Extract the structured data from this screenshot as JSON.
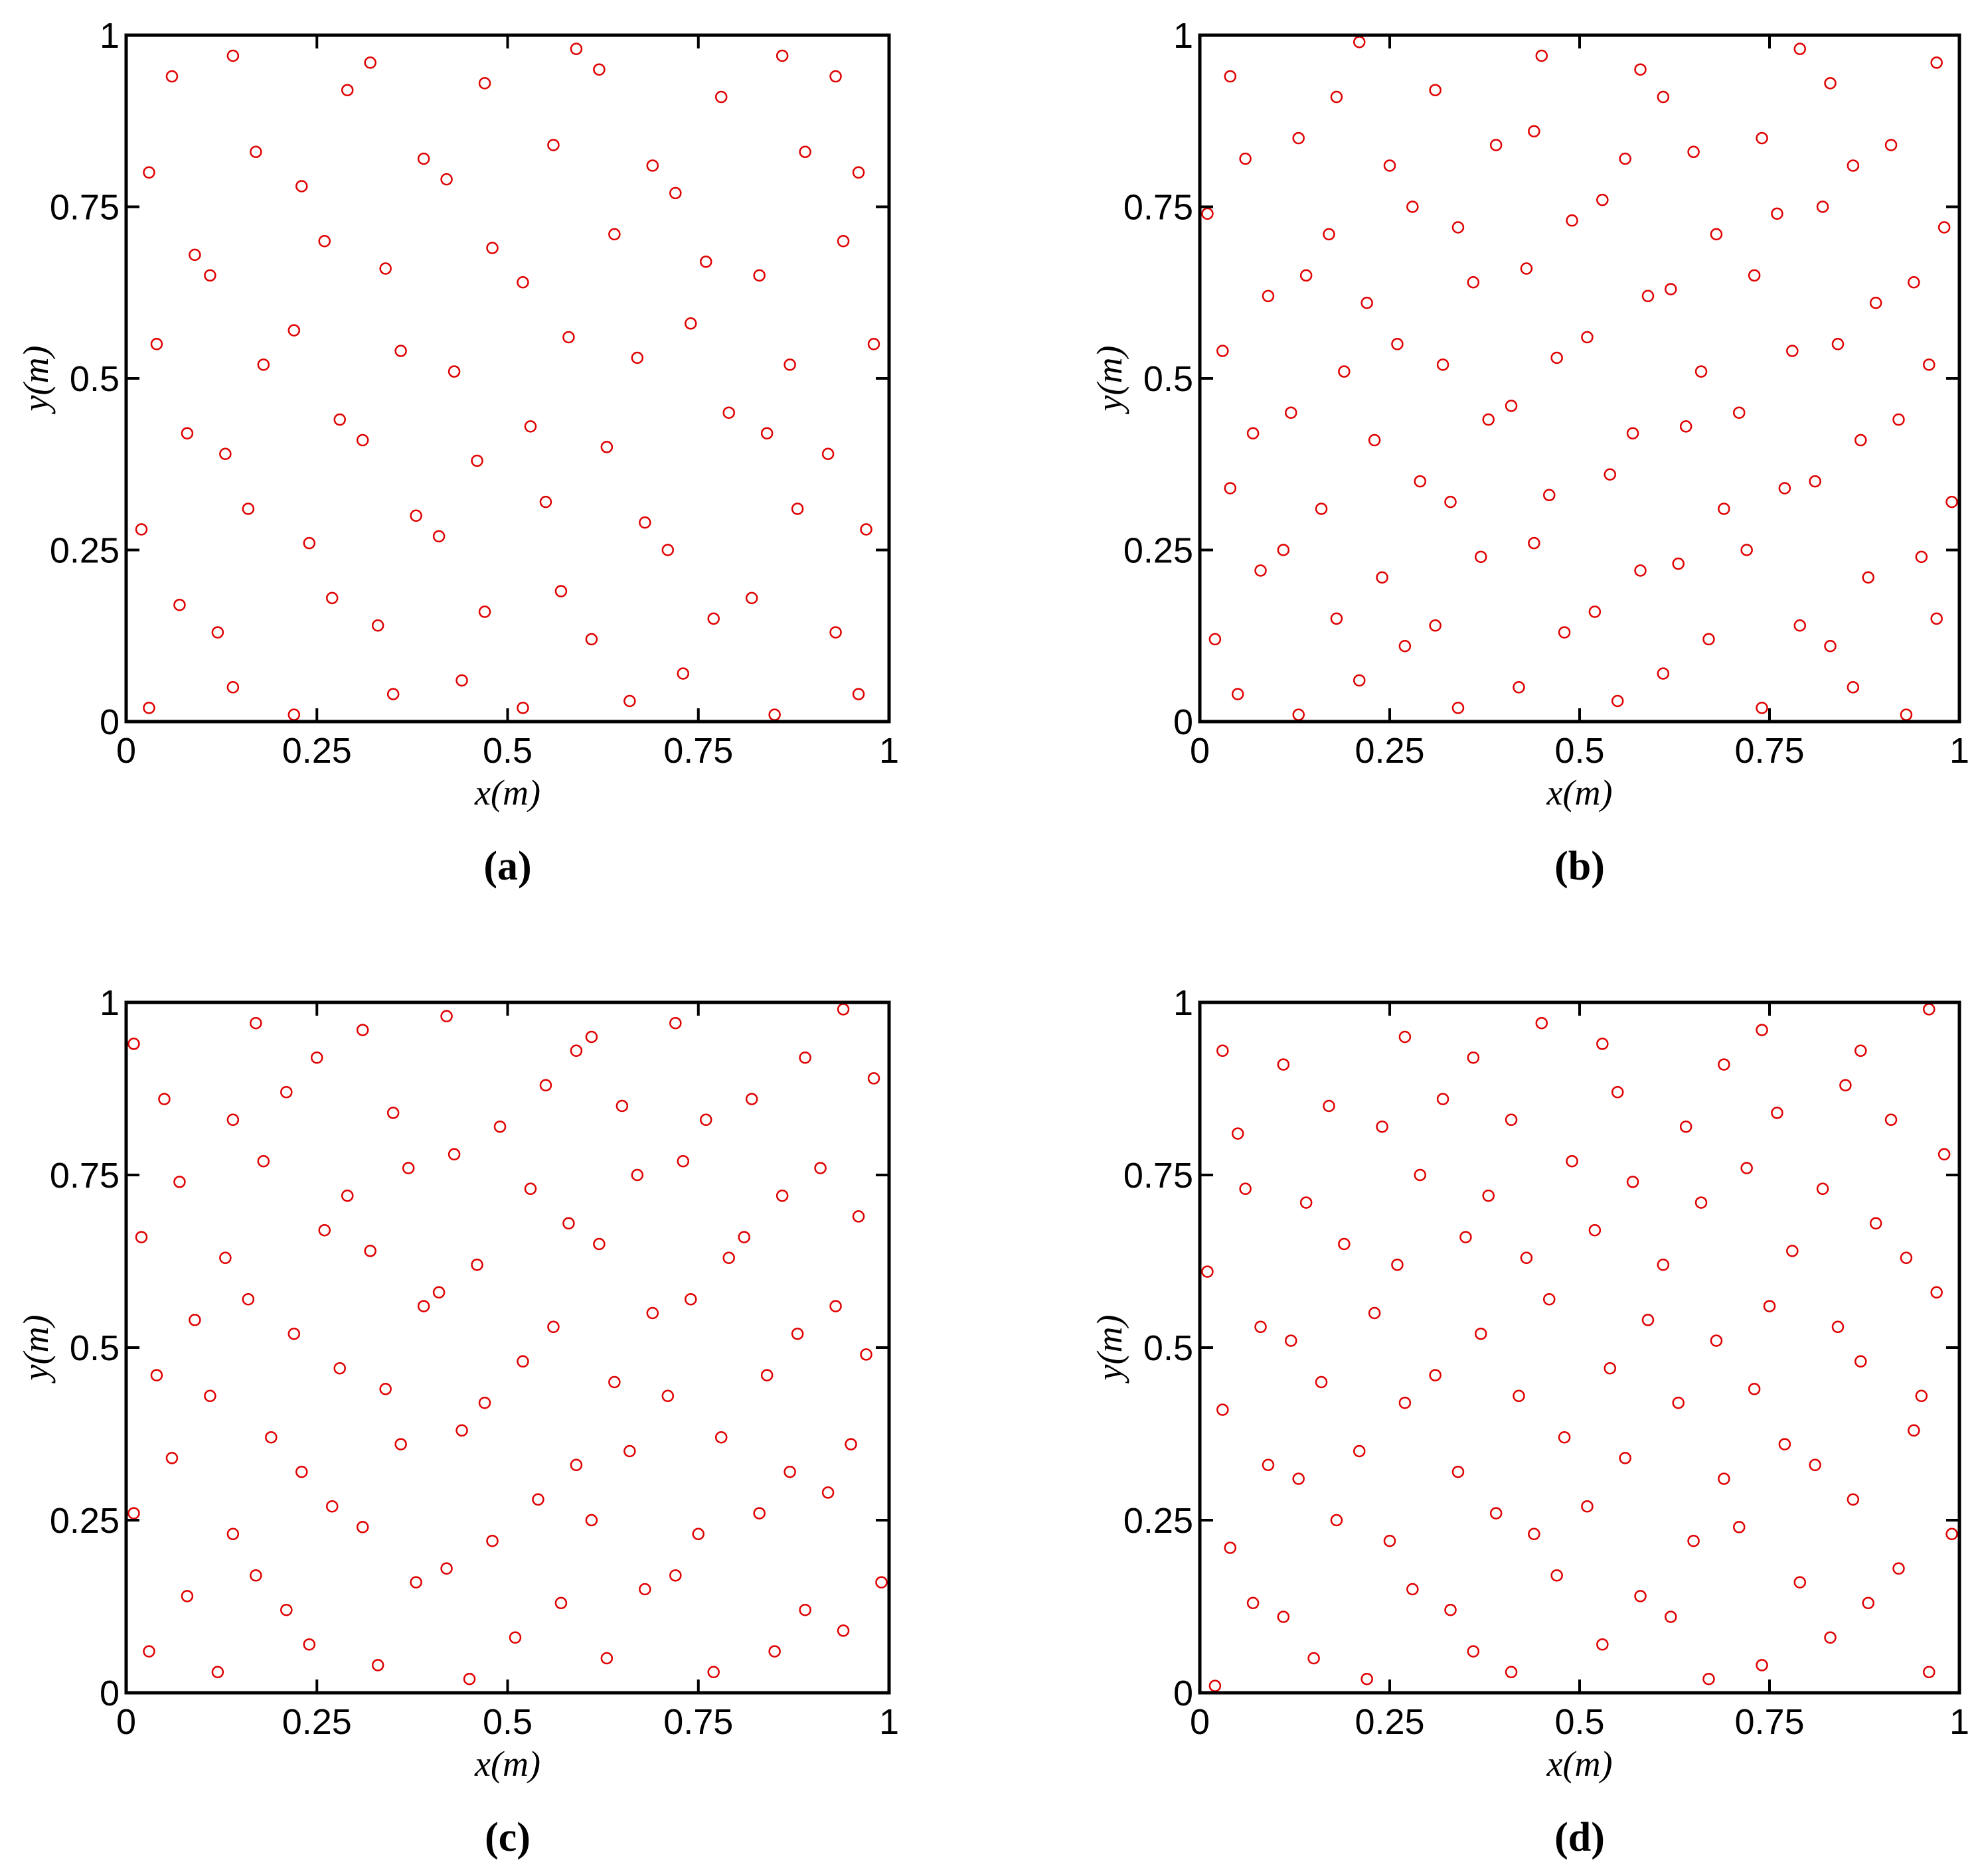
{
  "chart_data": [
    {
      "type": "scatter",
      "caption": "(a)",
      "xlabel": "x(m)",
      "ylabel": "y(m)",
      "color": "#e00000",
      "xlim": [
        0,
        1
      ],
      "ylim": [
        0,
        1
      ],
      "xticks": [
        0,
        0.25,
        0.5,
        0.75,
        1
      ],
      "yticks": [
        0,
        0.25,
        0.5,
        0.75,
        1
      ],
      "x": [
        0.03,
        0.14,
        0.22,
        0.35,
        0.44,
        0.52,
        0.66,
        0.73,
        0.85,
        0.96,
        0.07,
        0.12,
        0.27,
        0.33,
        0.47,
        0.57,
        0.61,
        0.77,
        0.82,
        0.93,
        0.02,
        0.16,
        0.24,
        0.38,
        0.41,
        0.55,
        0.68,
        0.71,
        0.88,
        0.97,
        0.08,
        0.13,
        0.28,
        0.31,
        0.46,
        0.53,
        0.63,
        0.79,
        0.84,
        0.92,
        0.04,
        0.18,
        0.22,
        0.36,
        0.43,
        0.58,
        0.67,
        0.74,
        0.87,
        0.98,
        0.09,
        0.11,
        0.26,
        0.34,
        0.48,
        0.52,
        0.64,
        0.76,
        0.83,
        0.94,
        0.03,
        0.17,
        0.23,
        0.39,
        0.42,
        0.56,
        0.69,
        0.72,
        0.89,
        0.96,
        0.06,
        0.14,
        0.29,
        0.32,
        0.47,
        0.59,
        0.62,
        0.78,
        0.86,
        0.93
      ],
      "y": [
        0.02,
        0.05,
        0.01,
        0.04,
        0.06,
        0.02,
        0.03,
        0.07,
        0.01,
        0.04,
        0.17,
        0.13,
        0.18,
        0.14,
        0.16,
        0.19,
        0.12,
        0.15,
        0.18,
        0.13,
        0.28,
        0.31,
        0.26,
        0.3,
        0.27,
        0.32,
        0.29,
        0.25,
        0.31,
        0.28,
        0.42,
        0.39,
        0.44,
        0.41,
        0.38,
        0.43,
        0.4,
        0.45,
        0.42,
        0.39,
        0.55,
        0.52,
        0.57,
        0.54,
        0.51,
        0.56,
        0.53,
        0.58,
        0.52,
        0.55,
        0.68,
        0.65,
        0.7,
        0.66,
        0.69,
        0.64,
        0.71,
        0.67,
        0.65,
        0.7,
        0.8,
        0.83,
        0.78,
        0.82,
        0.79,
        0.84,
        0.81,
        0.77,
        0.83,
        0.8,
        0.94,
        0.97,
        0.92,
        0.96,
        0.93,
        0.98,
        0.95,
        0.91,
        0.97,
        0.94
      ]
    },
    {
      "type": "scatter",
      "caption": "(b)",
      "xlabel": "x(m)",
      "ylabel": "y(m)",
      "color": "#e00000",
      "xlim": [
        0,
        1
      ],
      "ylim": [
        0,
        1
      ],
      "xticks": [
        0,
        0.25,
        0.5,
        0.75,
        1
      ],
      "yticks": [
        0,
        0.25,
        0.5,
        0.75,
        1
      ],
      "x": [
        0.05,
        0.13,
        0.21,
        0.34,
        0.42,
        0.55,
        0.61,
        0.74,
        0.86,
        0.93,
        0.02,
        0.18,
        0.27,
        0.31,
        0.48,
        0.52,
        0.67,
        0.79,
        0.83,
        0.97,
        0.08,
        0.11,
        0.24,
        0.37,
        0.44,
        0.58,
        0.63,
        0.72,
        0.88,
        0.95,
        0.04,
        0.16,
        0.29,
        0.33,
        0.46,
        0.54,
        0.69,
        0.77,
        0.81,
        0.99,
        0.07,
        0.12,
        0.23,
        0.38,
        0.41,
        0.57,
        0.64,
        0.71,
        0.87,
        0.92,
        0.03,
        0.19,
        0.26,
        0.32,
        0.47,
        0.51,
        0.66,
        0.78,
        0.84,
        0.96,
        0.09,
        0.14,
        0.22,
        0.36,
        0.43,
        0.59,
        0.62,
        0.73,
        0.89,
        0.94,
        0.01,
        0.17,
        0.28,
        0.34,
        0.49,
        0.53,
        0.68,
        0.76,
        0.82,
        0.98,
        0.06,
        0.13,
        0.25,
        0.39,
        0.44,
        0.56,
        0.65,
        0.74,
        0.86,
        0.91,
        0.04,
        0.18,
        0.21,
        0.31,
        0.45,
        0.58,
        0.61,
        0.79,
        0.83,
        0.97
      ],
      "y": [
        0.04,
        0.01,
        0.06,
        0.02,
        0.05,
        0.03,
        0.07,
        0.02,
        0.05,
        0.01,
        0.12,
        0.15,
        0.11,
        0.14,
        0.13,
        0.16,
        0.12,
        0.14,
        0.11,
        0.15,
        0.22,
        0.25,
        0.21,
        0.24,
        0.26,
        0.22,
        0.23,
        0.25,
        0.21,
        0.24,
        0.34,
        0.31,
        0.35,
        0.32,
        0.33,
        0.36,
        0.31,
        0.34,
        0.35,
        0.32,
        0.42,
        0.45,
        0.41,
        0.44,
        0.46,
        0.42,
        0.43,
        0.45,
        0.41,
        0.44,
        0.54,
        0.51,
        0.55,
        0.52,
        0.53,
        0.56,
        0.51,
        0.54,
        0.55,
        0.52,
        0.62,
        0.65,
        0.61,
        0.64,
        0.66,
        0.62,
        0.63,
        0.65,
        0.61,
        0.64,
        0.74,
        0.71,
        0.75,
        0.72,
        0.73,
        0.76,
        0.71,
        0.74,
        0.75,
        0.72,
        0.82,
        0.85,
        0.81,
        0.84,
        0.86,
        0.82,
        0.83,
        0.85,
        0.81,
        0.84,
        0.94,
        0.91,
        0.99,
        0.92,
        0.97,
        0.95,
        0.91,
        0.98,
        0.93,
        0.96
      ]
    },
    {
      "type": "scatter",
      "caption": "(c)",
      "xlabel": "x(m)",
      "ylabel": "y(m)",
      "color": "#e00000",
      "xlim": [
        0,
        1
      ],
      "ylim": [
        0,
        1
      ],
      "xticks": [
        0,
        0.25,
        0.5,
        0.75,
        1
      ],
      "yticks": [
        0,
        0.25,
        0.5,
        0.75,
        1
      ],
      "x": [
        0.03,
        0.12,
        0.24,
        0.33,
        0.45,
        0.51,
        0.63,
        0.77,
        0.85,
        0.94,
        0.08,
        0.17,
        0.21,
        0.38,
        0.42,
        0.57,
        0.68,
        0.72,
        0.89,
        0.99,
        0.01,
        0.14,
        0.27,
        0.31,
        0.48,
        0.54,
        0.61,
        0.75,
        0.83,
        0.92,
        0.06,
        0.19,
        0.23,
        0.36,
        0.44,
        0.59,
        0.66,
        0.78,
        0.87,
        0.95,
        0.04,
        0.11,
        0.28,
        0.34,
        0.47,
        0.52,
        0.64,
        0.71,
        0.84,
        0.97,
        0.09,
        0.16,
        0.22,
        0.39,
        0.41,
        0.56,
        0.69,
        0.74,
        0.88,
        0.93,
        0.02,
        0.13,
        0.26,
        0.32,
        0.46,
        0.58,
        0.62,
        0.79,
        0.81,
        0.96,
        0.07,
        0.18,
        0.29,
        0.37,
        0.43,
        0.53,
        0.67,
        0.73,
        0.86,
        0.91,
        0.05,
        0.14,
        0.21,
        0.35,
        0.49,
        0.55,
        0.65,
        0.76,
        0.82,
        0.98,
        0.01,
        0.17,
        0.25,
        0.31,
        0.42,
        0.59,
        0.61,
        0.72,
        0.89,
        0.94
      ],
      "y": [
        0.06,
        0.03,
        0.07,
        0.04,
        0.02,
        0.08,
        0.05,
        0.03,
        0.06,
        0.09,
        0.14,
        0.17,
        0.12,
        0.16,
        0.18,
        0.13,
        0.15,
        0.17,
        0.12,
        0.16,
        0.26,
        0.23,
        0.27,
        0.24,
        0.22,
        0.28,
        0.25,
        0.23,
        0.26,
        0.29,
        0.34,
        0.37,
        0.32,
        0.36,
        0.38,
        0.33,
        0.35,
        0.37,
        0.32,
        0.36,
        0.46,
        0.43,
        0.47,
        0.44,
        0.42,
        0.48,
        0.45,
        0.43,
        0.46,
        0.49,
        0.54,
        0.57,
        0.52,
        0.56,
        0.58,
        0.53,
        0.55,
        0.57,
        0.52,
        0.56,
        0.66,
        0.63,
        0.67,
        0.64,
        0.62,
        0.68,
        0.65,
        0.63,
        0.66,
        0.69,
        0.74,
        0.77,
        0.72,
        0.76,
        0.78,
        0.73,
        0.75,
        0.77,
        0.72,
        0.76,
        0.86,
        0.83,
        0.87,
        0.84,
        0.82,
        0.88,
        0.85,
        0.83,
        0.86,
        0.89,
        0.94,
        0.97,
        0.92,
        0.96,
        0.98,
        0.93,
        0.95,
        0.97,
        0.92,
        0.99
      ]
    },
    {
      "type": "scatter",
      "caption": "(d)",
      "xlabel": "x(m)",
      "ylabel": "y(m)",
      "color": "#e00000",
      "xlim": [
        0,
        1
      ],
      "ylim": [
        0,
        1
      ],
      "xticks": [
        0,
        0.25,
        0.5,
        0.75,
        1
      ],
      "yticks": [
        0,
        0.25,
        0.5,
        0.75,
        1
      ],
      "x": [
        0.02,
        0.15,
        0.22,
        0.36,
        0.41,
        0.53,
        0.67,
        0.74,
        0.83,
        0.96,
        0.07,
        0.11,
        0.28,
        0.33,
        0.47,
        0.58,
        0.62,
        0.79,
        0.88,
        0.92,
        0.04,
        0.18,
        0.25,
        0.39,
        0.44,
        0.51,
        0.65,
        0.71,
        0.86,
        0.99,
        0.09,
        0.13,
        0.21,
        0.34,
        0.48,
        0.56,
        0.69,
        0.77,
        0.81,
        0.94,
        0.03,
        0.16,
        0.27,
        0.31,
        0.42,
        0.54,
        0.63,
        0.73,
        0.87,
        0.95,
        0.08,
        0.12,
        0.23,
        0.37,
        0.46,
        0.59,
        0.68,
        0.75,
        0.84,
        0.97,
        0.01,
        0.19,
        0.26,
        0.35,
        0.43,
        0.52,
        0.61,
        0.78,
        0.89,
        0.93,
        0.06,
        0.14,
        0.29,
        0.38,
        0.49,
        0.57,
        0.66,
        0.72,
        0.82,
        0.98,
        0.05,
        0.17,
        0.24,
        0.32,
        0.41,
        0.55,
        0.64,
        0.76,
        0.85,
        0.91,
        0.03,
        0.11,
        0.27,
        0.36,
        0.45,
        0.53,
        0.69,
        0.74,
        0.87,
        0.96
      ],
      "y": [
        0.01,
        0.05,
        0.02,
        0.06,
        0.03,
        0.07,
        0.02,
        0.04,
        0.08,
        0.03,
        0.13,
        0.11,
        0.15,
        0.12,
        0.17,
        0.14,
        0.11,
        0.16,
        0.13,
        0.18,
        0.21,
        0.25,
        0.22,
        0.26,
        0.23,
        0.27,
        0.22,
        0.24,
        0.28,
        0.23,
        0.33,
        0.31,
        0.35,
        0.32,
        0.37,
        0.34,
        0.31,
        0.36,
        0.33,
        0.38,
        0.41,
        0.45,
        0.42,
        0.46,
        0.43,
        0.47,
        0.42,
        0.44,
        0.48,
        0.43,
        0.53,
        0.51,
        0.55,
        0.52,
        0.57,
        0.54,
        0.51,
        0.56,
        0.53,
        0.58,
        0.61,
        0.65,
        0.62,
        0.66,
        0.63,
        0.67,
        0.62,
        0.64,
        0.68,
        0.63,
        0.73,
        0.71,
        0.75,
        0.72,
        0.77,
        0.74,
        0.71,
        0.76,
        0.73,
        0.78,
        0.81,
        0.85,
        0.82,
        0.86,
        0.83,
        0.87,
        0.82,
        0.84,
        0.88,
        0.83,
        0.93,
        0.91,
        0.95,
        0.92,
        0.97,
        0.94,
        0.91,
        0.96,
        0.93,
        0.99
      ]
    }
  ]
}
